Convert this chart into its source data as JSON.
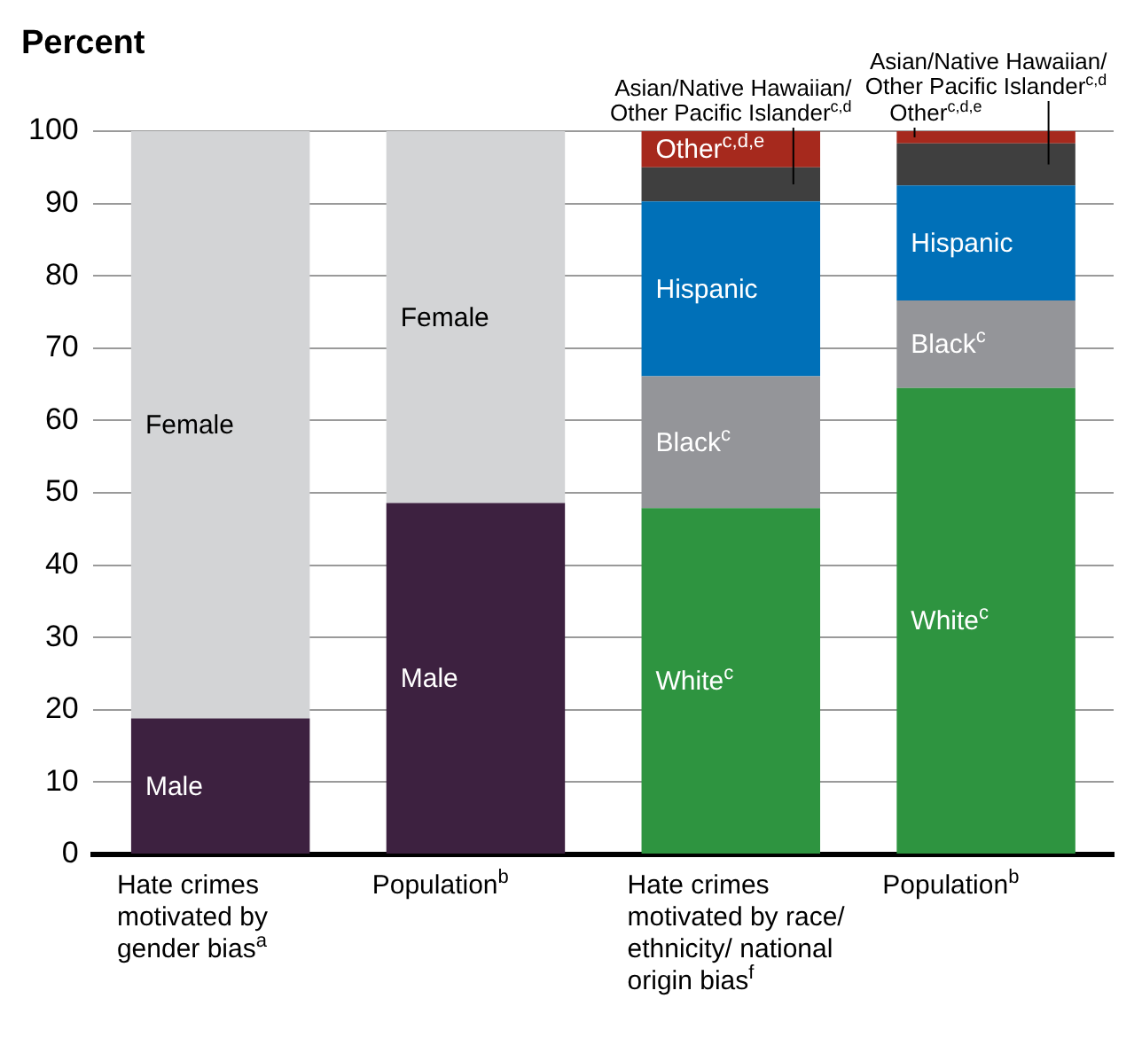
{
  "chart_data": {
    "type": "bar",
    "ylabel": "Percent",
    "categories": [
      "Hate crimes motivated by gender bias$^{a}$",
      "Population$^{b}$",
      "Hate crimes motivated by race/ethnicity/ national origin bias$^{f}$",
      "Population$^{b}$"
    ],
    "stacked": true,
    "ylim": [
      0,
      100
    ],
    "yticks": [
      0,
      10,
      20,
      30,
      40,
      50,
      60,
      70,
      80,
      90,
      100
    ],
    "grid": "y",
    "series": [
      {
        "name": "Male",
        "color": "#3d2140",
        "values": [
          18.8,
          48.6,
          null,
          null
        ]
      },
      {
        "name": "Female",
        "color": "#d3d4d6",
        "values": [
          81.2,
          51.4,
          null,
          null
        ]
      },
      {
        "name": "White$^{c}$",
        "color": "#2e9440",
        "values": [
          null,
          null,
          47.9,
          64.5
        ]
      },
      {
        "name": "Black$^{c}$",
        "color": "#949599",
        "values": [
          null,
          null,
          18.2,
          12.1
        ]
      },
      {
        "name": "Hispanic",
        "color": "#0070b8",
        "values": [
          null,
          null,
          24.2,
          15.9
        ]
      },
      {
        "name": "Asian/Native Hawaiian/Other Pacific Islander$^{c,d}$",
        "color": "#3f3f3f",
        "values": [
          null,
          null,
          4.7,
          5.8
        ]
      },
      {
        "name": "Other$^{c,d,e}$",
        "color": "#a6291d",
        "values": [
          null,
          null,
          5.0,
          1.7
        ]
      }
    ]
  }
}
